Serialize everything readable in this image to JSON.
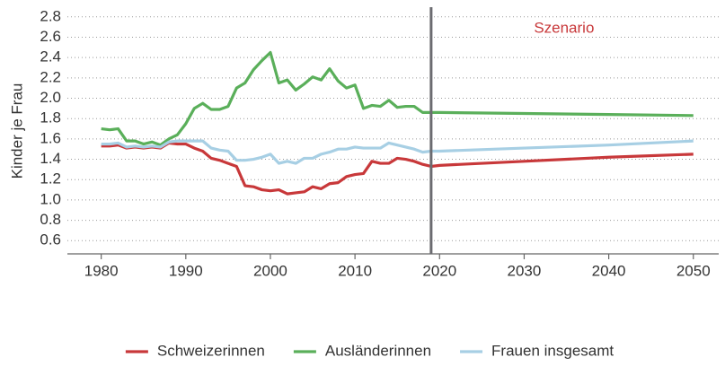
{
  "chart_data": {
    "type": "line",
    "y_label": "Kinder je Frau",
    "annotation": "Szenario",
    "vline": 2019,
    "x": [
      1980,
      1981,
      1982,
      1983,
      1984,
      1985,
      1986,
      1987,
      1988,
      1989,
      1990,
      1991,
      1992,
      1993,
      1994,
      1995,
      1996,
      1997,
      1998,
      1999,
      2000,
      2001,
      2002,
      2003,
      2004,
      2005,
      2006,
      2007,
      2008,
      2009,
      2010,
      2011,
      2012,
      2013,
      2014,
      2015,
      2016,
      2017,
      2018,
      2019,
      2020,
      2030,
      2040,
      2050
    ],
    "series": [
      {
        "name": "Schweizerinnen",
        "color": "#c8383a",
        "values": [
          1.53,
          1.53,
          1.54,
          1.51,
          1.52,
          1.51,
          1.52,
          1.51,
          1.56,
          1.55,
          1.55,
          1.51,
          1.48,
          1.41,
          1.39,
          1.36,
          1.33,
          1.14,
          1.13,
          1.1,
          1.09,
          1.1,
          1.06,
          1.07,
          1.08,
          1.13,
          1.11,
          1.16,
          1.17,
          1.23,
          1.25,
          1.26,
          1.38,
          1.36,
          1.36,
          1.41,
          1.4,
          1.38,
          1.35,
          1.33,
          1.34,
          1.38,
          1.42,
          1.45
        ]
      },
      {
        "name": "Ausländerinnen",
        "color": "#5aaf5a",
        "values": [
          1.7,
          1.69,
          1.7,
          1.58,
          1.58,
          1.55,
          1.57,
          1.54,
          1.6,
          1.64,
          1.75,
          1.9,
          1.95,
          1.89,
          1.89,
          1.92,
          2.1,
          2.15,
          2.28,
          2.37,
          2.45,
          2.15,
          2.18,
          2.08,
          2.14,
          2.21,
          2.18,
          2.29,
          2.17,
          2.1,
          2.13,
          1.9,
          1.93,
          1.92,
          1.98,
          1.91,
          1.92,
          1.92,
          1.86,
          1.86,
          1.86,
          1.85,
          1.84,
          1.83
        ]
      },
      {
        "name": "Frauen insgesamt",
        "color": "#a7cfe4",
        "values": [
          1.55,
          1.55,
          1.56,
          1.52,
          1.53,
          1.52,
          1.53,
          1.52,
          1.57,
          1.58,
          1.58,
          1.58,
          1.58,
          1.51,
          1.49,
          1.48,
          1.39,
          1.39,
          1.4,
          1.42,
          1.45,
          1.36,
          1.38,
          1.36,
          1.41,
          1.41,
          1.45,
          1.47,
          1.5,
          1.5,
          1.52,
          1.51,
          1.51,
          1.51,
          1.56,
          1.54,
          1.52,
          1.5,
          1.47,
          1.48,
          1.48,
          1.51,
          1.54,
          1.58
        ]
      }
    ],
    "xlim": [
      1976,
      2053
    ],
    "xticks": [
      1980,
      1990,
      2000,
      2010,
      2020,
      2030,
      2040,
      2050
    ],
    "ylim": [
      0.47,
      2.86
    ],
    "yticks": [
      0.6,
      0.8,
      {
        "value": 1.0,
        "label": "1.0"
      },
      1.2,
      1.4,
      1.6,
      1.8,
      {
        "value": 2.0,
        "label": "2.0"
      },
      2.2,
      2.4,
      2.6,
      2.8
    ],
    "grid": true,
    "legend": "bottom"
  }
}
